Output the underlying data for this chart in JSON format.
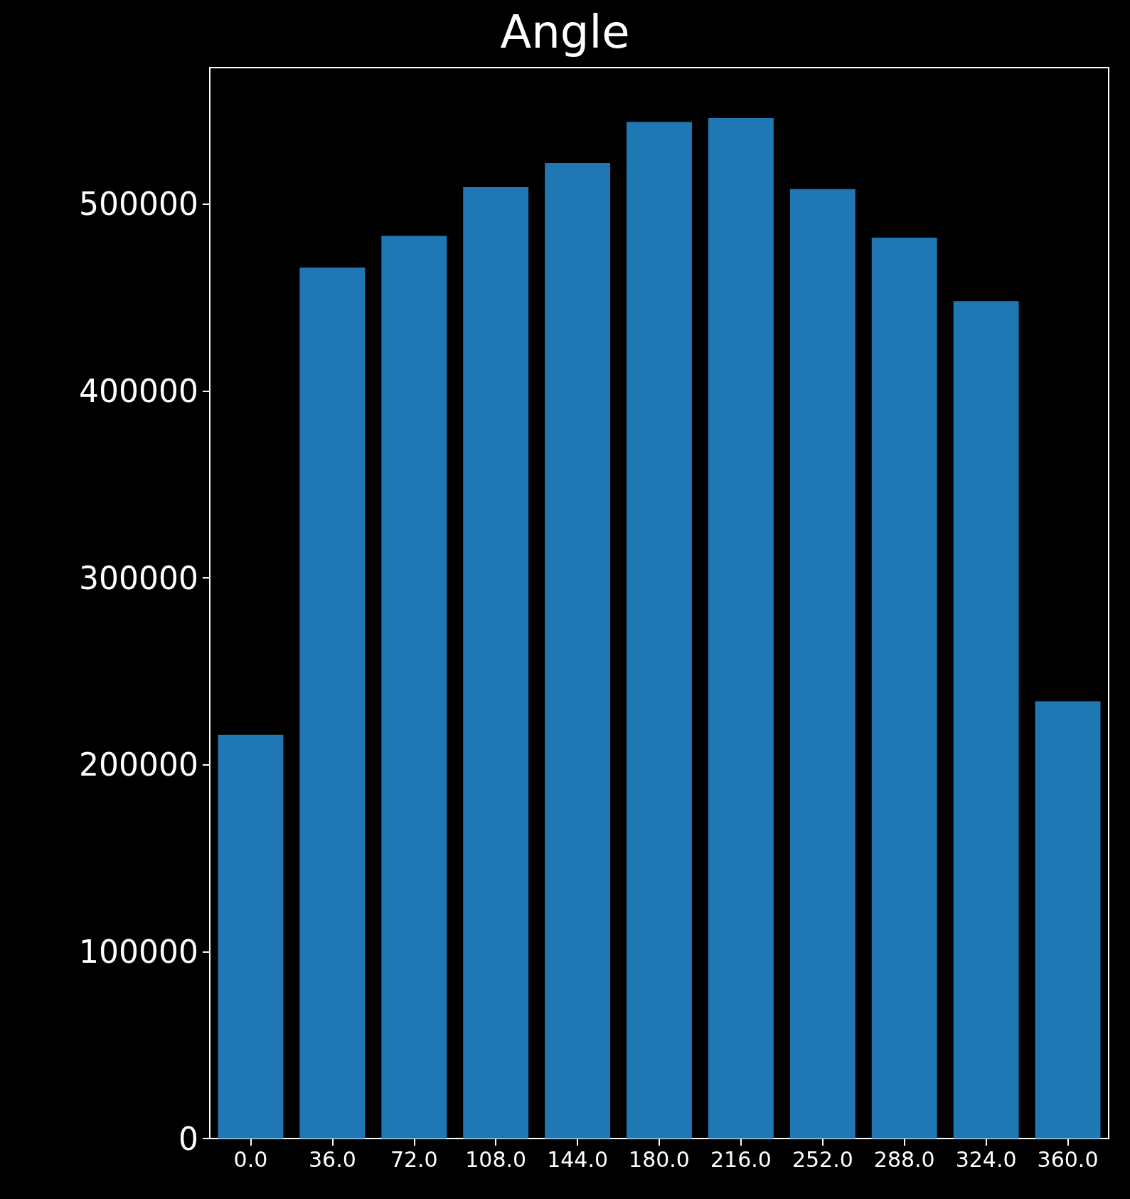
{
  "chart_data": {
    "type": "bar",
    "title": "Angle",
    "categories": [
      "0.0",
      "36.0",
      "72.0",
      "108.0",
      "144.0",
      "180.0",
      "216.0",
      "252.0",
      "288.0",
      "324.0",
      "360.0"
    ],
    "values": [
      216000,
      466000,
      483000,
      509000,
      522000,
      544000,
      546000,
      508000,
      482000,
      448000,
      234000
    ],
    "color": "#1f77b4",
    "ylim": [
      0,
      573000
    ],
    "yticks": [
      0,
      100000,
      200000,
      300000,
      400000,
      500000
    ],
    "grid": false
  }
}
